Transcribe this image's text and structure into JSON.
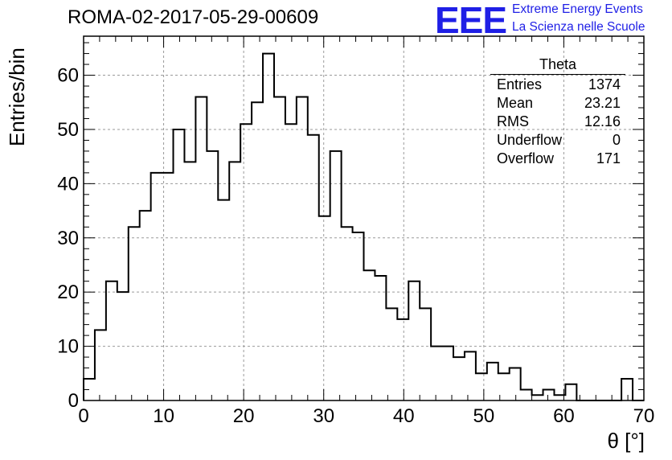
{
  "chart_data": {
    "type": "bar",
    "title": "ROMA-02-2017-05-29-00609",
    "xlabel": "θ [°]",
    "ylabel": "Entries/bin",
    "xlim": [
      0,
      70
    ],
    "ylim": [
      0,
      67.2
    ],
    "bin_width": 1.4,
    "x_ticks": [
      0,
      10,
      20,
      30,
      40,
      50,
      60,
      70
    ],
    "y_ticks": [
      0,
      10,
      20,
      30,
      40,
      50,
      60
    ],
    "grid": true,
    "values": [
      4,
      13,
      22,
      20,
      32,
      35,
      42,
      42,
      50,
      44,
      56,
      46,
      37,
      44,
      51,
      55,
      64,
      56,
      51,
      56,
      49,
      34,
      46,
      32,
      31,
      24,
      23,
      17,
      15,
      22,
      17,
      10,
      10,
      8,
      9,
      5,
      7,
      5,
      6,
      2,
      1,
      2,
      1,
      3,
      0,
      0,
      0,
      0,
      4,
      0
    ],
    "stats": {
      "title": "Theta",
      "rows": [
        {
          "label": "Entries",
          "value": "1374"
        },
        {
          "label": "Mean",
          "value": "23.21"
        },
        {
          "label": "RMS",
          "value": "12.16"
        },
        {
          "label": "Underflow",
          "value": "0"
        },
        {
          "label": "Overflow",
          "value": "171"
        }
      ]
    }
  },
  "logo": {
    "text": "EEE",
    "line1": "Extreme Energy Events",
    "line2": "La Scienza nelle Scuole",
    "color": "#1f1fe6"
  }
}
